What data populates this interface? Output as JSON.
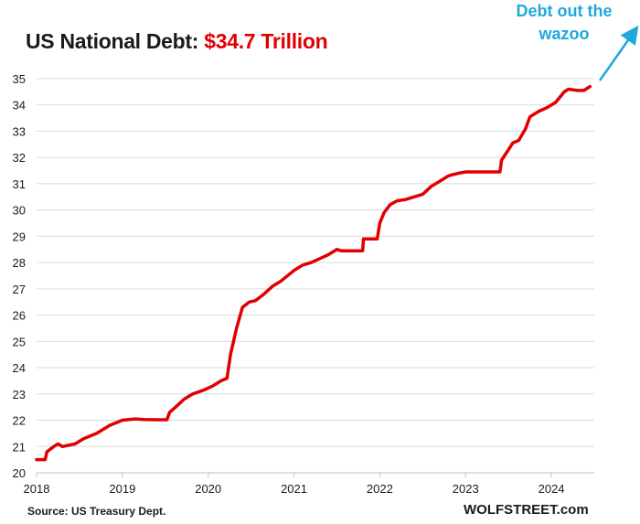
{
  "chart_data": {
    "type": "line",
    "title": "US National Debt:",
    "title_value": "$34.7 Trillion",
    "annotation": "Debt out the wazoo",
    "source": "Source: US Treasury Dept.",
    "credit": "WOLFSTREET.com",
    "xlabel": "",
    "ylabel": "",
    "xlim": [
      2018.0,
      2024.5
    ],
    "ylim": [
      20,
      35
    ],
    "x_ticks": [
      2018,
      2019,
      2020,
      2021,
      2022,
      2023,
      2024
    ],
    "y_ticks": [
      20,
      21,
      22,
      23,
      24,
      25,
      26,
      27,
      28,
      29,
      30,
      31,
      32,
      33,
      34,
      35
    ],
    "grid": "horizontal",
    "colors": {
      "line": "#e00000",
      "annotation": "#1fa8dc",
      "grid": "#d9d9d9"
    },
    "series": [
      {
        "values": [
          [
            2018.0,
            20.5
          ],
          [
            2018.1,
            20.5
          ],
          [
            2018.12,
            20.8
          ],
          [
            2018.2,
            21.0
          ],
          [
            2018.25,
            21.1
          ],
          [
            2018.3,
            21.0
          ],
          [
            2018.45,
            21.1
          ],
          [
            2018.55,
            21.3
          ],
          [
            2018.7,
            21.5
          ],
          [
            2018.85,
            21.8
          ],
          [
            2019.0,
            22.0
          ],
          [
            2019.15,
            22.05
          ],
          [
            2019.25,
            22.03
          ],
          [
            2019.4,
            22.02
          ],
          [
            2019.52,
            22.02
          ],
          [
            2019.55,
            22.3
          ],
          [
            2019.62,
            22.5
          ],
          [
            2019.72,
            22.8
          ],
          [
            2019.82,
            23.0
          ],
          [
            2019.95,
            23.15
          ],
          [
            2020.05,
            23.3
          ],
          [
            2020.15,
            23.5
          ],
          [
            2020.22,
            23.6
          ],
          [
            2020.26,
            24.5
          ],
          [
            2020.33,
            25.5
          ],
          [
            2020.4,
            26.3
          ],
          [
            2020.48,
            26.5
          ],
          [
            2020.55,
            26.55
          ],
          [
            2020.65,
            26.8
          ],
          [
            2020.75,
            27.1
          ],
          [
            2020.85,
            27.3
          ],
          [
            2021.0,
            27.7
          ],
          [
            2021.1,
            27.9
          ],
          [
            2021.2,
            28.0
          ],
          [
            2021.3,
            28.15
          ],
          [
            2021.4,
            28.3
          ],
          [
            2021.5,
            28.5
          ],
          [
            2021.55,
            28.45
          ],
          [
            2021.7,
            28.45
          ],
          [
            2021.8,
            28.45
          ],
          [
            2021.81,
            28.9
          ],
          [
            2021.9,
            28.9
          ],
          [
            2021.97,
            28.9
          ],
          [
            2022.0,
            29.5
          ],
          [
            2022.05,
            29.9
          ],
          [
            2022.12,
            30.2
          ],
          [
            2022.2,
            30.35
          ],
          [
            2022.3,
            30.4
          ],
          [
            2022.4,
            30.5
          ],
          [
            2022.5,
            30.6
          ],
          [
            2022.6,
            30.9
          ],
          [
            2022.7,
            31.1
          ],
          [
            2022.8,
            31.3
          ],
          [
            2022.85,
            31.35
          ],
          [
            2022.92,
            31.4
          ],
          [
            2023.0,
            31.45
          ],
          [
            2023.2,
            31.45
          ],
          [
            2023.4,
            31.45
          ],
          [
            2023.42,
            31.9
          ],
          [
            2023.5,
            32.3
          ],
          [
            2023.55,
            32.55
          ],
          [
            2023.62,
            32.65
          ],
          [
            2023.7,
            33.1
          ],
          [
            2023.75,
            33.55
          ],
          [
            2023.85,
            33.75
          ],
          [
            2023.95,
            33.9
          ],
          [
            2024.05,
            34.1
          ],
          [
            2024.1,
            34.3
          ],
          [
            2024.15,
            34.5
          ],
          [
            2024.2,
            34.6
          ],
          [
            2024.3,
            34.55
          ],
          [
            2024.38,
            34.55
          ],
          [
            2024.45,
            34.7
          ]
        ]
      }
    ]
  }
}
